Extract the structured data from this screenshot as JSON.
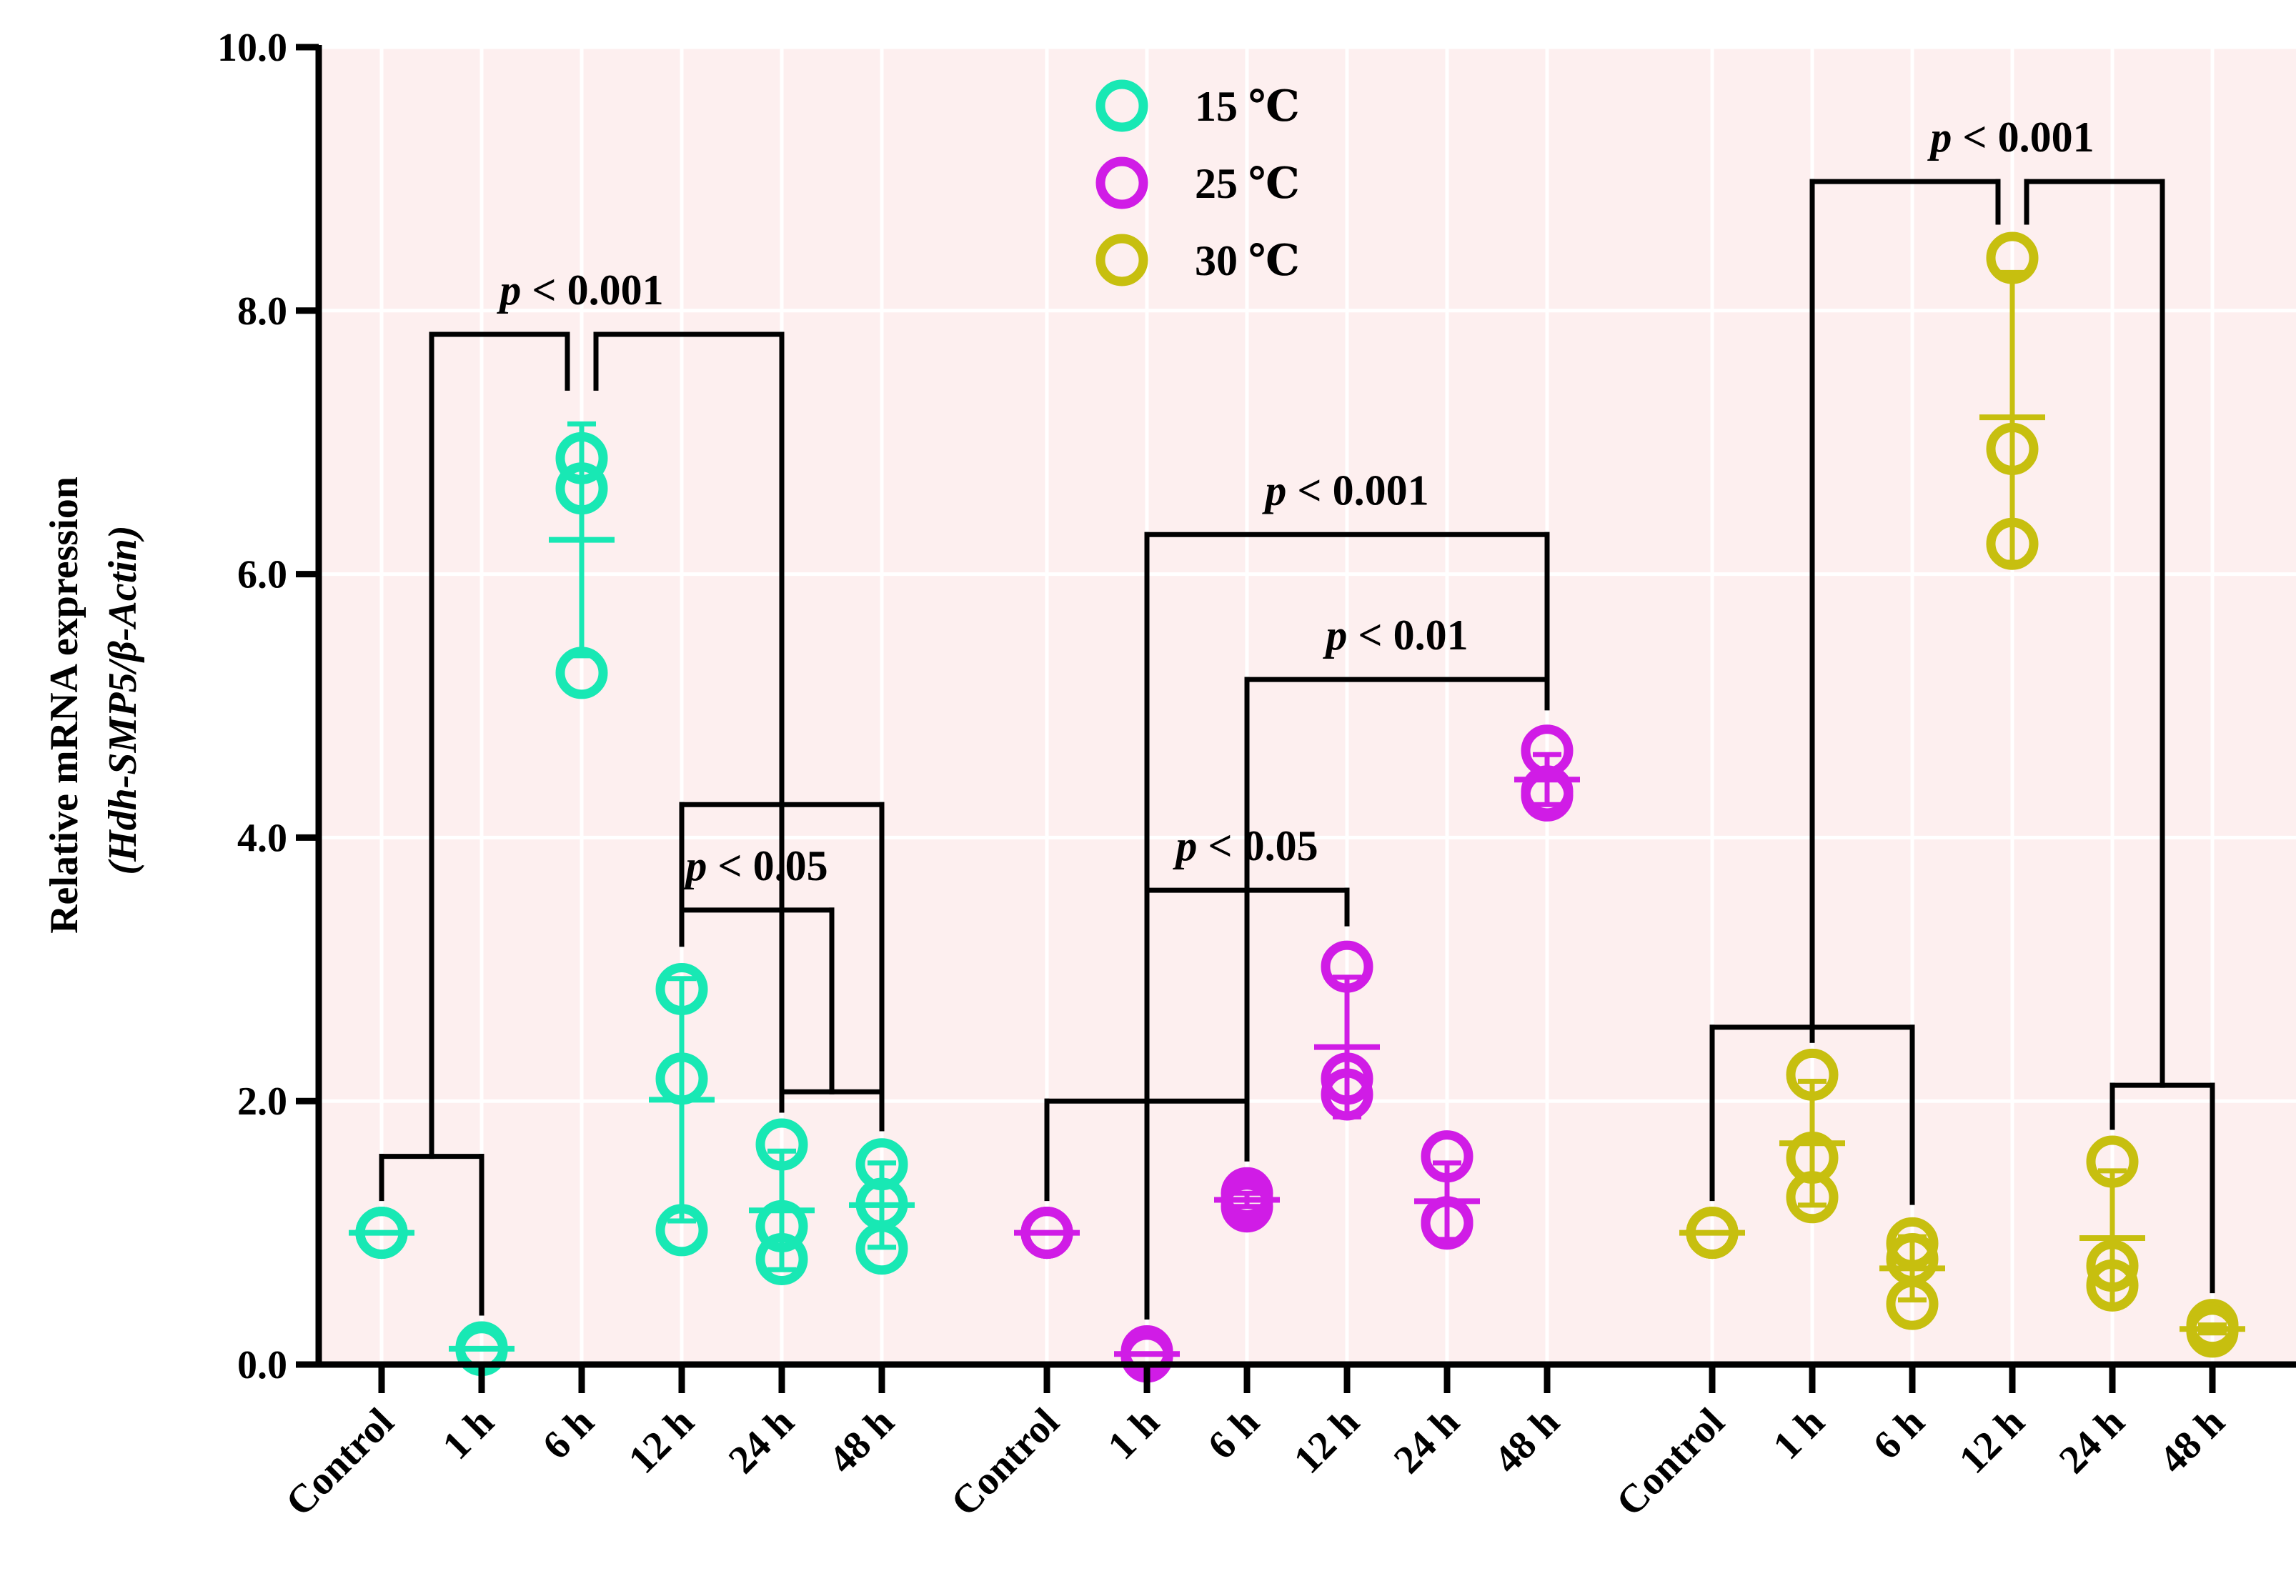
{
  "chart_data": {
    "type": "scatter",
    "ylabel_line1": "Relative mRNA expression",
    "ylabel_line2": "(Hdh-SMP5/β-Actin)",
    "ylim": [
      0,
      10
    ],
    "yticks": [
      "0.0",
      "2.0",
      "4.0",
      "6.0",
      "8.0",
      "10.0"
    ],
    "categories": [
      "Control",
      "1 h",
      "6 h",
      "12 h",
      "24 h",
      "48 h"
    ],
    "grid": true,
    "legend_position": "top-center",
    "series": [
      {
        "name": "15 ℃",
        "color": "#18E8B4",
        "groups": [
          {
            "x": "Control",
            "points": [
              1.0,
              1.0,
              1.0
            ],
            "mean": 1.0,
            "sd": 0.0
          },
          {
            "x": "1 h",
            "points": [
              0.12,
              0.11,
              0.13
            ],
            "mean": 0.12,
            "sd": 0.01
          },
          {
            "x": "6 h",
            "points": [
              6.88,
              6.65,
              5.25
            ],
            "mean": 6.26,
            "sd": 0.88
          },
          {
            "x": "12 h",
            "points": [
              2.85,
              2.17,
              1.02
            ],
            "mean": 2.01,
            "sd": 0.92
          },
          {
            "x": "24 h",
            "points": [
              1.67,
              1.05,
              0.8
            ],
            "mean": 1.17,
            "sd": 0.45
          },
          {
            "x": "48 h",
            "points": [
              1.52,
              1.22,
              0.88
            ],
            "mean": 1.21,
            "sd": 0.32
          }
        ]
      },
      {
        "name": "25 ℃",
        "color": "#D01CE6",
        "groups": [
          {
            "x": "Control",
            "points": [
              1.0,
              1.0,
              1.0
            ],
            "mean": 1.0,
            "sd": 0.0
          },
          {
            "x": "1 h",
            "points": [
              0.1,
              0.07,
              0.06
            ],
            "mean": 0.08,
            "sd": 0.02
          },
          {
            "x": "6 h",
            "points": [
              1.3,
              1.25,
              1.2
            ],
            "mean": 1.25,
            "sd": 0.05
          },
          {
            "x": "12 h",
            "points": [
              3.02,
              2.17,
              2.05
            ],
            "mean": 2.41,
            "sd": 0.53
          },
          {
            "x": "24 h",
            "points": [
              1.58,
              1.08,
              1.07
            ],
            "mean": 1.24,
            "sd": 0.29
          },
          {
            "x": "48 h",
            "points": [
              4.66,
              4.35,
              4.32
            ],
            "mean": 4.44,
            "sd": 0.19
          }
        ]
      },
      {
        "name": "30 ℃",
        "color": "#C7BF0F",
        "groups": [
          {
            "x": "Control",
            "points": [
              1.0,
              1.0,
              1.0
            ],
            "mean": 1.0,
            "sd": 0.0
          },
          {
            "x": "1 h",
            "points": [
              2.2,
              1.57,
              1.27
            ],
            "mean": 1.68,
            "sd": 0.47
          },
          {
            "x": "6 h",
            "points": [
              0.92,
              0.8,
              0.46
            ],
            "mean": 0.73,
            "sd": 0.24
          },
          {
            "x": "12 h",
            "points": [
              8.4,
              6.95,
              6.23
            ],
            "mean": 7.19,
            "sd": 1.1
          },
          {
            "x": "24 h",
            "points": [
              1.54,
              0.75,
              0.6
            ],
            "mean": 0.96,
            "sd": 0.51
          },
          {
            "x": "48 h",
            "points": [
              0.3,
              0.27,
              0.25
            ],
            "mean": 0.27,
            "sd": 0.03
          }
        ]
      }
    ],
    "annotations": [
      {
        "text": "p < 0.001",
        "series": 0,
        "y": 7.82,
        "left": {
          "groups": [
            0,
            1
          ],
          "y": 1.58
        },
        "right": {
          "groups": [
            3,
            4,
            5
          ],
          "y": 4.25
        },
        "to": 2,
        "gap": true
      },
      {
        "text": "p < 0.05",
        "series": 0,
        "y": 3.45,
        "left": {
          "groups": [
            3
          ],
          "y": 2.85
        },
        "right": {
          "groups": [
            4,
            5
          ],
          "y": 2.07
        },
        "to": null,
        "gap": false
      },
      {
        "text": "p < 0.001",
        "series": 1,
        "y": 6.3,
        "left": {
          "groups": [
            0,
            1,
            2
          ],
          "y": 2.0
        },
        "right": {
          "groups": [
            5
          ],
          "y": 5.05
        },
        "to": null,
        "gap": false
      },
      {
        "text": "p < 0.01",
        "series": 1,
        "y": 5.2,
        "left": {
          "groups": [
            2
          ],
          "y": 4.42
        },
        "right": {
          "groups": [
            5
          ],
          "y": 5.2
        },
        "to": null,
        "gap": false
      },
      {
        "text": "p < 0.05",
        "series": 1,
        "y": 3.6,
        "left": {
          "groups": [
            1
          ],
          "y": 2.0
        },
        "right": {
          "groups": [
            3
          ],
          "y": 3.6
        },
        "to": null,
        "gap": false
      },
      {
        "text": "p < 0.001",
        "series": 2,
        "y": 8.98,
        "left": {
          "groups": [
            0,
            1,
            2
          ],
          "y": 2.56
        },
        "right": {
          "groups": [
            4,
            5
          ],
          "y": 2.12
        },
        "to": 3,
        "gap": true
      }
    ]
  }
}
